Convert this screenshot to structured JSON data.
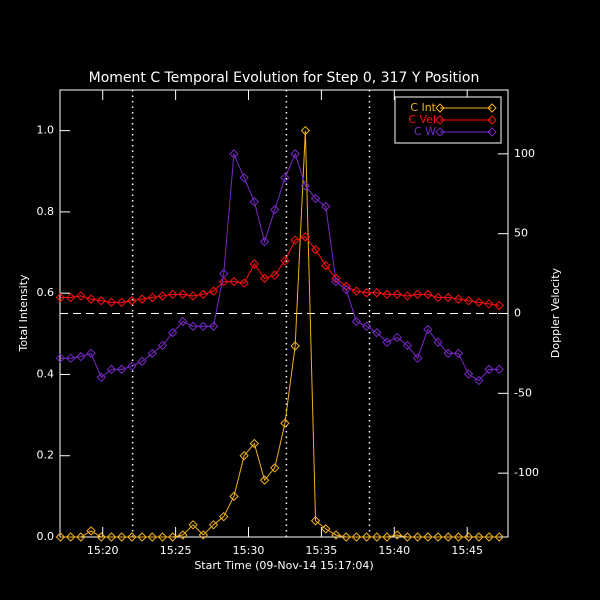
{
  "chart_data": {
    "type": "line",
    "title": "Moment C Temporal Evolution for Step 0, 317 Y Position",
    "x_label": "Start Time (09-Nov-14 15:17:04)",
    "y_label": "Total Intensity",
    "y2_label": "Doppler Velocity",
    "x": [
      17.1,
      17.8,
      18.5,
      19.2,
      19.9,
      20.6,
      21.3,
      22.0,
      22.7,
      23.4,
      24.1,
      24.8,
      25.5,
      26.2,
      26.9,
      27.6,
      28.3,
      29.0,
      29.7,
      30.4,
      31.1,
      31.8,
      32.5,
      33.2,
      33.9,
      34.6,
      35.3,
      36.0,
      36.7,
      37.4,
      38.1,
      38.8,
      39.5,
      40.2,
      40.9,
      41.6,
      42.3,
      43.0,
      43.7,
      44.4,
      45.1,
      45.8,
      46.5,
      47.2
    ],
    "series": [
      {
        "name": "C Int",
        "color": "#f0b020",
        "values": [
          0,
          0,
          0,
          0.015,
          0,
          0,
          0,
          0,
          0,
          0,
          0,
          0,
          0.005,
          0.03,
          0.005,
          0.03,
          0.05,
          0.1,
          0.2,
          0.23,
          0.14,
          0.17,
          0.28,
          0.47,
          1.0,
          0.04,
          0.02,
          0.005,
          0,
          0,
          0,
          0,
          0,
          0.005,
          0,
          0,
          0,
          0,
          0,
          0,
          0,
          0,
          0,
          0
        ]
      },
      {
        "name": "C Vel",
        "color": "#ff1010",
        "axis": "y2",
        "values": [
          10,
          10,
          11,
          9,
          8,
          7,
          7,
          8,
          9,
          10,
          11,
          12,
          12,
          11,
          12,
          14,
          20,
          20,
          19,
          31,
          22,
          24,
          33,
          46,
          48,
          40,
          30,
          22,
          17,
          14,
          13,
          13,
          12,
          12,
          11,
          12,
          12,
          10,
          10,
          9,
          8,
          7,
          6,
          5
        ]
      },
      {
        "name": "C W",
        "color": "#7828c8",
        "axis": "y2",
        "values": [
          -28,
          -28,
          -27,
          -25,
          -40,
          -35,
          -35,
          -33,
          -30,
          -25,
          -20,
          -12,
          -5,
          -8,
          -8,
          -8,
          25,
          100,
          85,
          70,
          45,
          65,
          85,
          100,
          80,
          72,
          67,
          20,
          15,
          -5,
          -8,
          -12,
          -18,
          -15,
          -20,
          -28,
          -10,
          -18,
          -25,
          -25,
          -38,
          -42,
          -35,
          -35
        ]
      }
    ],
    "xlim": [
      17.07,
      47.8
    ],
    "xticks": [
      {
        "value": 20,
        "label": "15:20"
      },
      {
        "value": 25,
        "label": "15:25"
      },
      {
        "value": 30,
        "label": "15:30"
      },
      {
        "value": 35,
        "label": "15:35"
      },
      {
        "value": 40,
        "label": "15:40"
      },
      {
        "value": 45,
        "label": "15:45"
      }
    ],
    "ylim": [
      0,
      1.1
    ],
    "yticks": [
      {
        "value": 0,
        "label": "0.0"
      },
      0.2,
      0.4,
      0.6,
      0.8,
      {
        "value": 1,
        "label": "1.0"
      }
    ],
    "y2lim": [
      -140,
      140
    ],
    "y2ticks": [
      -100,
      -50,
      0,
      50,
      100
    ],
    "vlines": [
      22.05,
      32.6,
      38.3
    ],
    "hline_y2": 0,
    "legend": "upper right"
  }
}
